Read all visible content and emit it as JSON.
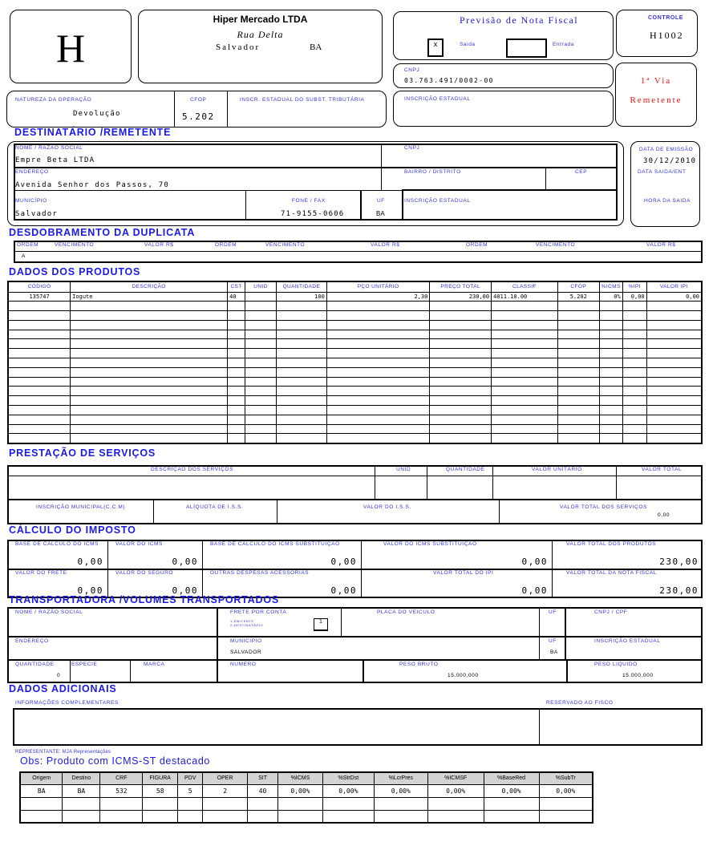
{
  "header": {
    "logo_letter": "H",
    "company": "Hiper Mercado LTDA",
    "street": "Rua Delta",
    "city": "Salvador",
    "state": "BA",
    "doc_title": "Previsão de Nota Fiscal",
    "saida_mark": "x",
    "saida_label": "Saida",
    "entrada_label": "Entrada",
    "controle_label": "CONTROLE",
    "controle_value": "H1002",
    "cnpj_label": "CNPJ",
    "cnpj_value": "03.763.491/0002-00",
    "via_label": "1ª Via",
    "via_sub": "Remetente",
    "ie_label": "INSCRIÇÃO ESTADUAL",
    "natureza_label": "NATUREZA DA OPERAÇÃO",
    "natureza_value": "Devolução",
    "cfop_label": "CFOP",
    "cfop_value": "5.202",
    "ie_subst_label": "INSCR. ESTADUAL DO SUBST. TRIBUTÁRIA"
  },
  "dest": {
    "heading": "DESTINATÁRIO /REMETENTE",
    "nome_label": "NOME / RAZÃO SOCIAL",
    "nome": "Empre Beta LTDA",
    "cnpj_label": "CNPJ",
    "endereco_label": "ENDEREÇO",
    "endereco": "Avenida Senhor dos Passos, 70",
    "bairro_label": "BAIRRO / DISTRITO",
    "cep_label": "CEP",
    "municipio_label": "MUNICÍPIO",
    "municipio": "Salvador",
    "fone_label": "FONE / FAX",
    "fone": "71-9155-0606",
    "uf_label": "UF",
    "uf": "BA",
    "ie_label": "INSCRIÇÃO ESTADUAL",
    "emissao_label": "DATA DE EMISSÃO",
    "emissao": "30/12/2010",
    "saida_label": "DATA SAIDA/ENT",
    "hora_label": "HORA DA SAIDA"
  },
  "duplicata": {
    "heading": "DESDOBRAMENTO DA DUPLICATA",
    "columns": [
      "ORDEM",
      "VENCIMENTO",
      "VALOR R$",
      "ORDEM",
      "VENCIMENTO",
      "VALOR R$",
      "ORDEM",
      "VENCIMENTO",
      "VALOR R$"
    ],
    "first_cell": "A"
  },
  "produtos": {
    "heading": "DADOS DOS PRODUTOS",
    "columns": [
      "CÓDIGO",
      "DESCRIÇÃO",
      "CST",
      "UNID",
      "QUANTIDADE",
      "PÇO UNITÁRIO",
      "PREÇO TOTAL",
      "CLASSIF",
      "CFOP",
      "%ICMS",
      "%IPI",
      "VALOR IPI"
    ],
    "rows": [
      [
        "135747",
        "Iogute",
        "40",
        "",
        "100",
        "2,30",
        "230,00",
        "4011.10.00",
        "5.202",
        "0%",
        "0,00",
        "0,00"
      ]
    ]
  },
  "servicos": {
    "heading": "PRESTAÇÃO DE SERVIÇOS",
    "columns": [
      "DESCRIÇÃO DOS SERVIÇOS",
      "UNID",
      "QUANTIDADE",
      "VALOR UNITÁRIO",
      "VALOR TOTAL"
    ],
    "insc_mun_label": "INSCRIÇÃO MUNICIPAL(C.C.M)",
    "aliquota_label": "ALÍQUOTA DE I.S.S.",
    "valor_iss_label": "VALOR DO I.S.S.",
    "total_label": "VALOR TOTAL DOS SERVIÇOS",
    "total": "0,00"
  },
  "imposto": {
    "heading": "CÁLCULO DO IMPOSTO",
    "cells": [
      {
        "label": "BASE DE CÁLCULO DO ICMS",
        "value": "0,00"
      },
      {
        "label": "VALOR DO ICMS",
        "value": "0,00"
      },
      {
        "label": "BASE DE CÁLCULO DO ICMS SUBSTITUIÇÃO",
        "value": "0,00"
      },
      {
        "label": "VALOR DO ICMS SUBSTITUIÇÃO",
        "value": "0,00"
      },
      {
        "label": "VALOR TOTAL DOS PRODUTOS",
        "value": "230,00"
      },
      {
        "label": "VALOR DO FRETE",
        "value": "0,00"
      },
      {
        "label": "VALOR DO SEGURO",
        "value": "0,00"
      },
      {
        "label": "OUTRAS DESPESAS ACESSÓRIAS",
        "value": "0,00"
      },
      {
        "label": "VALOR TOTAL DO IPI",
        "value": "0,00"
      },
      {
        "label": "VALOR TOTAL DA NOTA FISCAL",
        "value": "230,00"
      }
    ]
  },
  "transp": {
    "heading": "TRANSPORTADORA /VOLUMES TRANSPORTADOS",
    "nome_label": "NOME / RAZÃO SOCIAL",
    "frete_label": "FRETE POR CONTA",
    "frete_opt1": "1-EMITENTE",
    "frete_opt2": "2-DESTINATÁRIO",
    "frete_value": "1",
    "placa_label": "PLACA DO VEICULO",
    "uf_label": "UF",
    "cnpj_label": "CNPJ / CPF",
    "endereco_label": "ENDEREÇO",
    "municipio_label": "MUNICIPIO",
    "municipio": "SALVADOR",
    "uf2_label": "UF",
    "uf2": "BA",
    "ie_label": "INSCRIÇÃO ESTADUAL",
    "qtd_label": "QUANTIDADE",
    "qtd": "0",
    "especie_label": "ESPECIE",
    "marca_label": "MARCA",
    "numero_label": "NUMERO",
    "peso_bruto_label": "PESO BRUTO",
    "peso_bruto": "15.000,000",
    "peso_liq_label": "PESO LIQUIDO",
    "peso_liq": "15.000,000"
  },
  "adicionais": {
    "heading": "DADOS ADICIONAIS",
    "info_label": "INFORMAÇÕES COMPLEMENTARES",
    "fisco_label": "RESERVADO AO FISCO",
    "representante": "REPRESENTANTE: MJA Representações",
    "obs": "Obs: Produto com ICMS-ST destacado",
    "columns": [
      "Origem",
      "Destino",
      "CRF",
      "FIGURA",
      "PDV",
      "OPER",
      "SIT",
      "%ICMS",
      "%StrDst",
      "%LcrPres",
      "%ICMSF",
      "%BaseRed",
      "%SubTr"
    ],
    "rows": [
      [
        "BA",
        "BA",
        "532",
        "58",
        "5",
        "2",
        "40",
        "0,00%",
        "0,00%",
        "0,00%",
        "0,00%",
        "0,00%",
        "0,00%"
      ]
    ]
  },
  "colors": {
    "label_blue": "#3333ee",
    "heading_blue": "#1a1aee",
    "via_red": "#ee1111"
  }
}
